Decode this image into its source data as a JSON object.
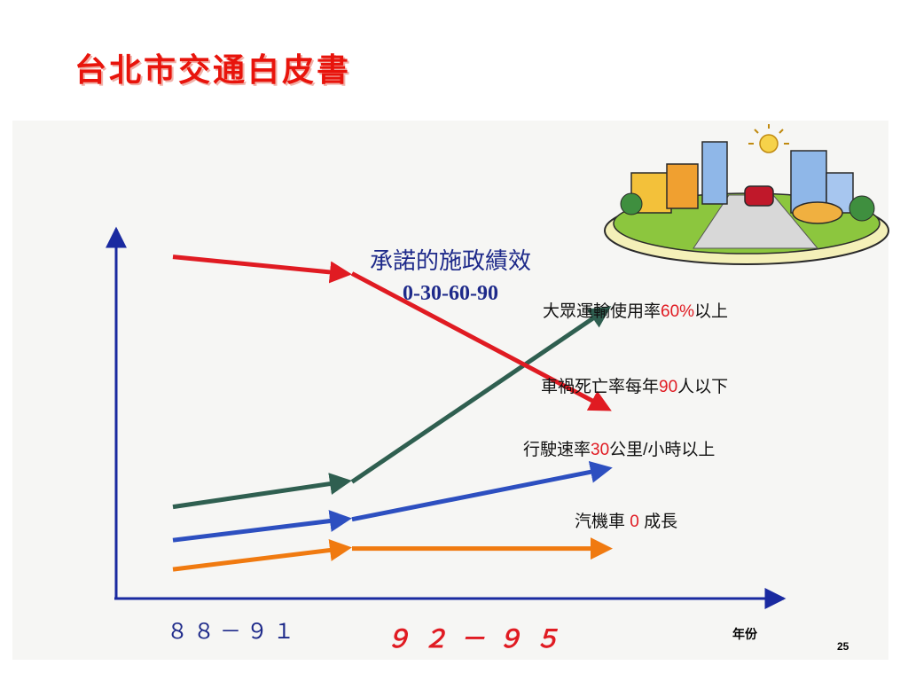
{
  "slide": {
    "title": "台北市交通白皮書",
    "page_number": "25"
  },
  "chart_data": {
    "type": "line",
    "title": "承諾的施政績效",
    "subtitle": "0-30-60-90",
    "x_periods": [
      "８８－９１",
      "９２－９５"
    ],
    "xlabel": "年份",
    "ylabel": "",
    "series": [
      {
        "name": "大眾運輸使用率60%以上",
        "label_parts": [
          "大眾運輸使用率",
          "60%",
          "以上"
        ],
        "color": "#2f5f50",
        "points": [
          [
            0.0,
            0.22
          ],
          [
            0.2,
            0.28
          ],
          [
            0.5,
            0.69
          ]
        ]
      },
      {
        "name": "車禍死亡率每年90人以下",
        "label_parts": [
          "車禍死亡率每年",
          "90",
          "人以下"
        ],
        "color": "#e01b22",
        "points": [
          [
            0.0,
            0.82
          ],
          [
            0.2,
            0.78
          ],
          [
            0.5,
            0.46
          ]
        ]
      },
      {
        "name": "行駛速率30公里/小時以上",
        "label_parts": [
          "行駛速率",
          "30",
          "公里/小時以上"
        ],
        "color": "#2d4fc0",
        "points": [
          [
            0.0,
            0.14
          ],
          [
            0.2,
            0.19
          ],
          [
            0.5,
            0.31
          ]
        ]
      },
      {
        "name": "汽機車 0 成長",
        "label_parts": [
          "汽機車 ",
          "0",
          " 成長"
        ],
        "color": "#f07a10",
        "points": [
          [
            0.0,
            0.07
          ],
          [
            0.2,
            0.12
          ],
          [
            0.5,
            0.12
          ]
        ]
      }
    ],
    "highlight_color": "#e01b22"
  }
}
